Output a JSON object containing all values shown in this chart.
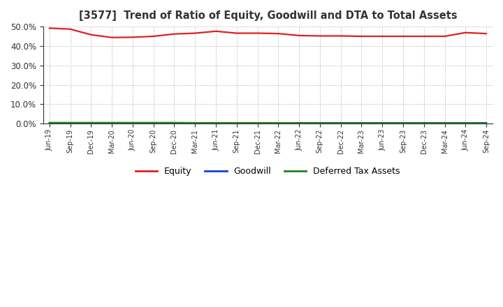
{
  "title": "[3577]  Trend of Ratio of Equity, Goodwill and DTA to Total Assets",
  "x_labels": [
    "Jun-19",
    "Sep-19",
    "Dec-19",
    "Mar-20",
    "Jun-20",
    "Sep-20",
    "Dec-20",
    "Mar-21",
    "Jun-21",
    "Sep-21",
    "Dec-21",
    "Mar-22",
    "Jun-22",
    "Sep-22",
    "Dec-22",
    "Mar-23",
    "Jun-23",
    "Sep-23",
    "Dec-23",
    "Mar-24",
    "Jun-24",
    "Sep-24"
  ],
  "equity": [
    0.492,
    0.487,
    0.458,
    0.444,
    0.445,
    0.45,
    0.462,
    0.466,
    0.476,
    0.466,
    0.466,
    0.464,
    0.454,
    0.452,
    0.452,
    0.45,
    0.45,
    0.45,
    0.45,
    0.45,
    0.469,
    0.464
  ],
  "goodwill": [
    0.003,
    0.003,
    0.003,
    0.002,
    0.002,
    0.002,
    0.002,
    0.002,
    0.002,
    0.002,
    0.001,
    0.001,
    0.004,
    0.004,
    0.004,
    0.004,
    0.004,
    0.004,
    0.004,
    0.004,
    0.004,
    0.004
  ],
  "dta": [
    0.005,
    0.005,
    0.005,
    0.005,
    0.005,
    0.005,
    0.005,
    0.004,
    0.004,
    0.004,
    0.004,
    0.004,
    0.003,
    0.003,
    0.003,
    0.003,
    0.003,
    0.003,
    0.003,
    0.003,
    0.003,
    0.003
  ],
  "equity_color": "#e02020",
  "goodwill_color": "#1040e0",
  "dta_color": "#208020",
  "ylim": [
    0.0,
    0.5
  ],
  "yticks": [
    0.0,
    0.1,
    0.2,
    0.3,
    0.4,
    0.5
  ],
  "background_color": "#ffffff",
  "grid_color": "#aaaaaa",
  "legend_labels": [
    "Equity",
    "Goodwill",
    "Deferred Tax Assets"
  ]
}
